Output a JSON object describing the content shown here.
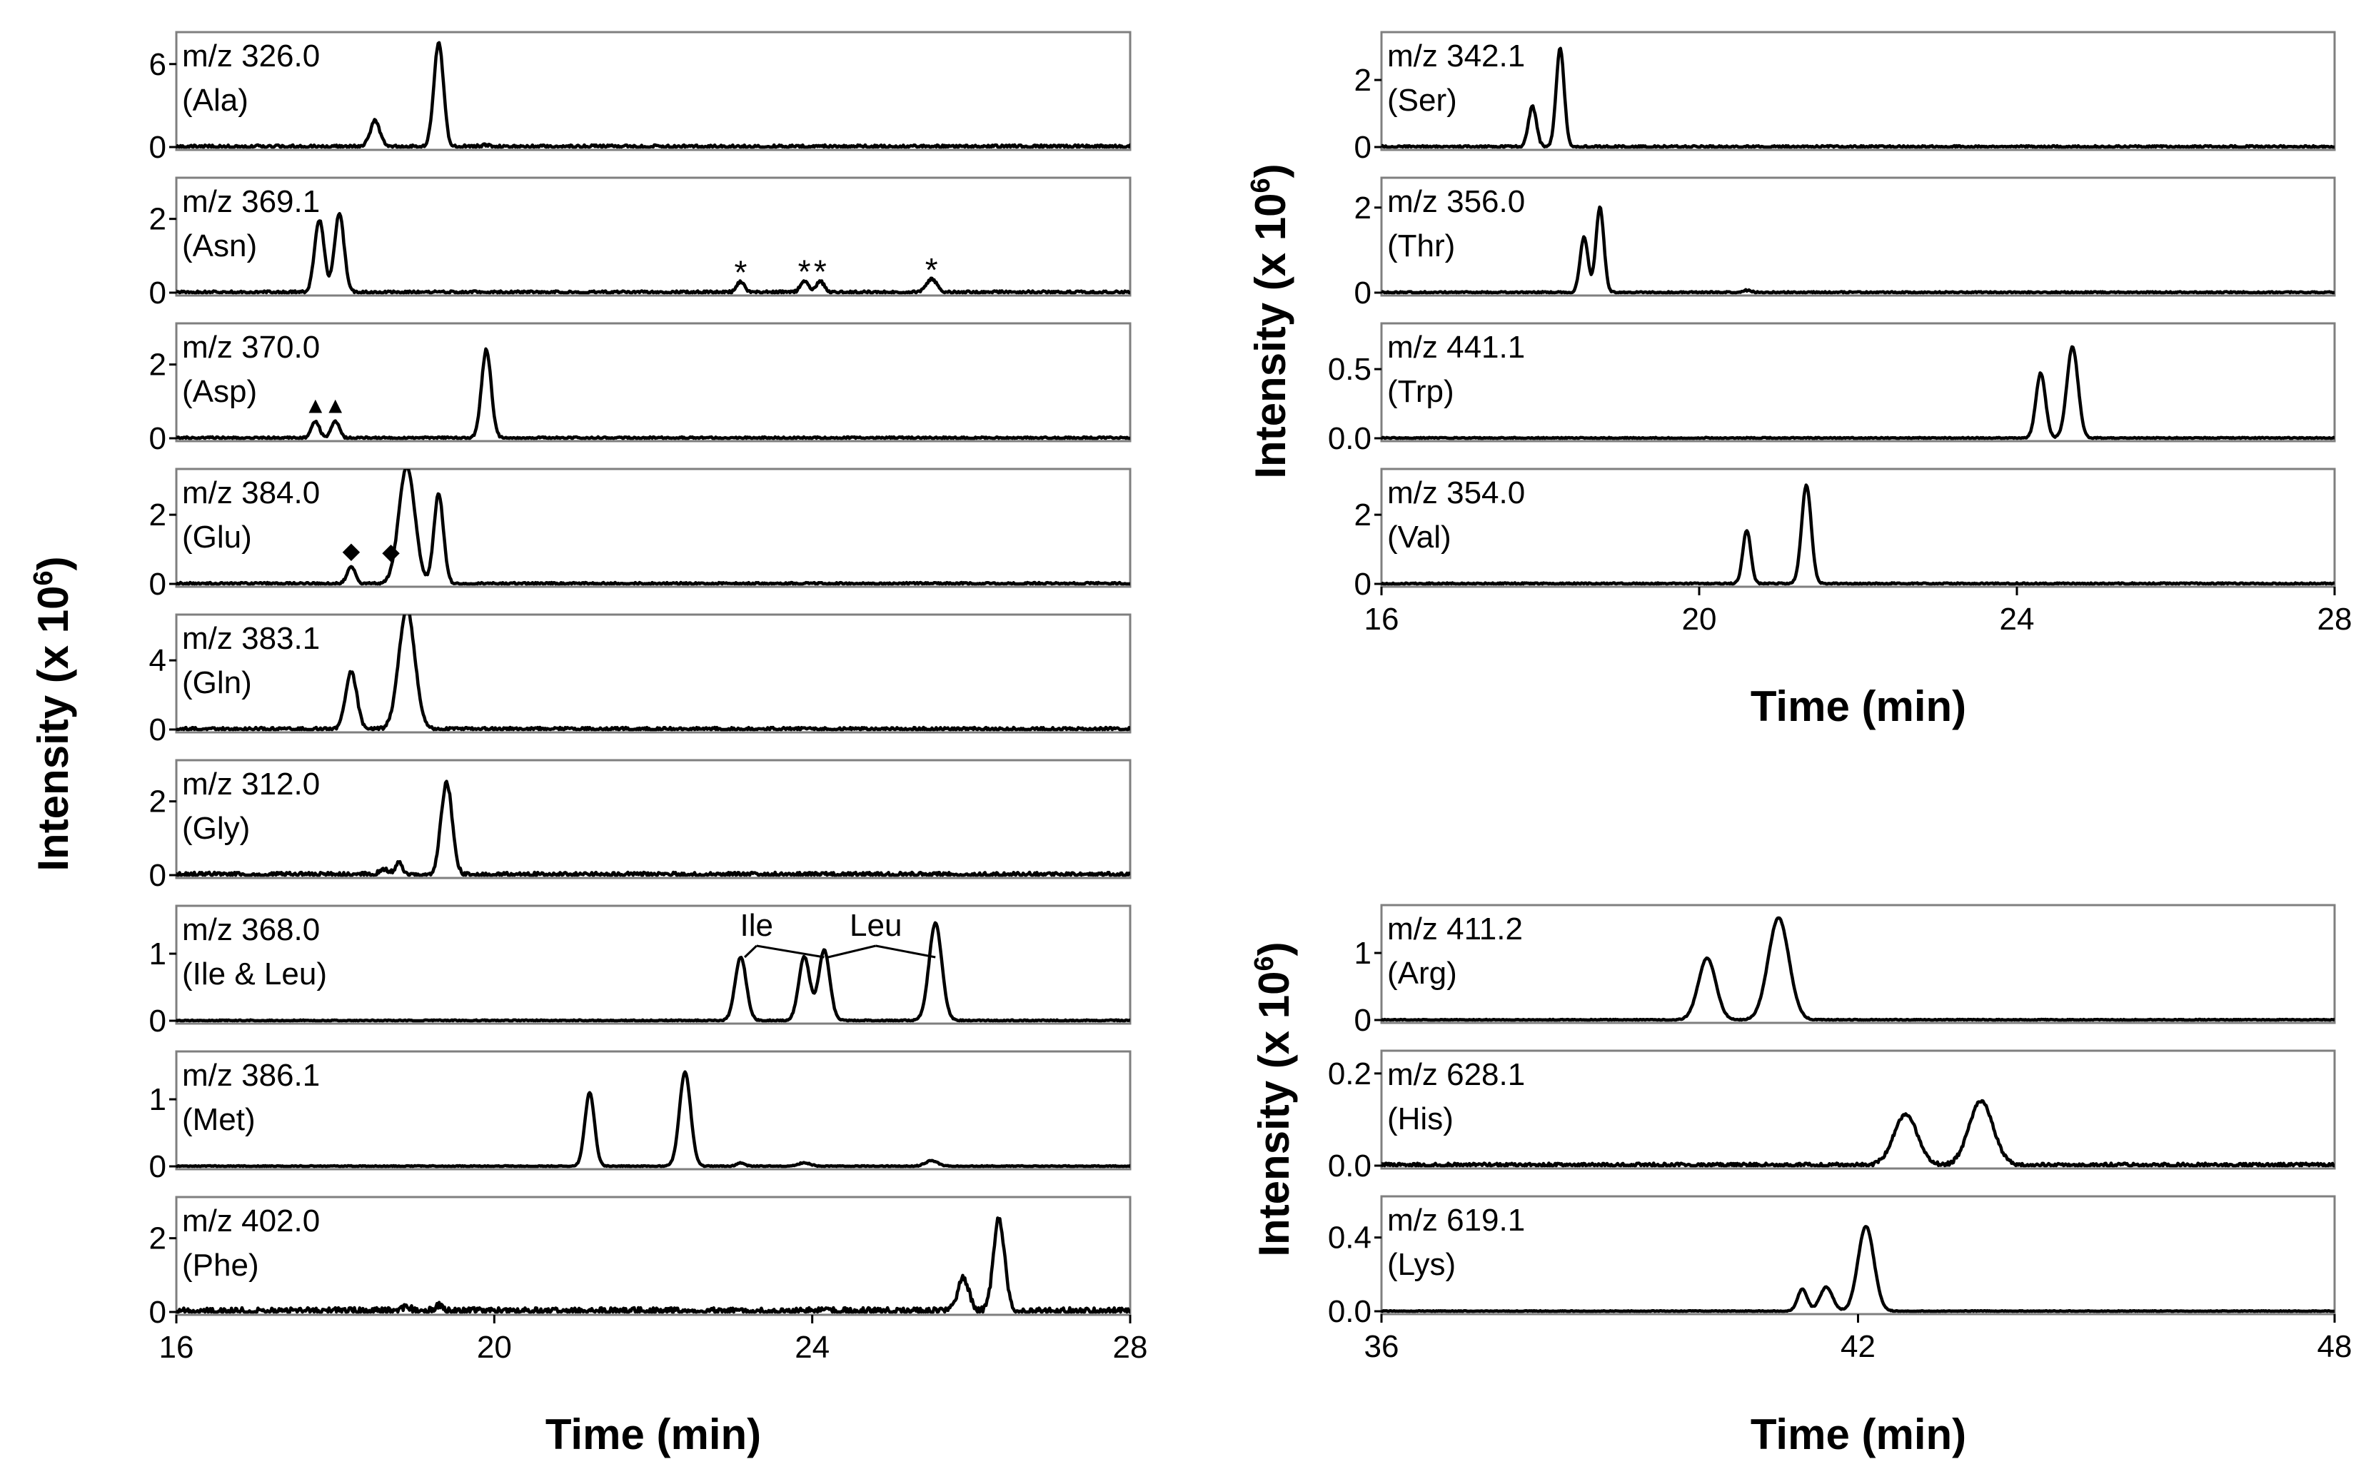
{
  "chart_data": [
    {
      "type": "line",
      "group": "left",
      "xlabel": "Time (min)",
      "ylabel": "Intensity (x 10",
      "ylabel_sup": "6",
      "ylabel_close": ")",
      "xlim": [
        16,
        28
      ],
      "xticks": [
        16,
        20,
        24,
        28
      ],
      "xtick_labels": [
        "16",
        "20",
        "24",
        "28"
      ],
      "panels": [
        {
          "mz": "m/z 326.0",
          "aa": "(Ala)",
          "yticks": [
            0,
            6
          ],
          "ytick_labels": [
            "0",
            "6"
          ],
          "ylim": [
            0,
            8
          ],
          "noise": 0.03,
          "noise_seed": 3,
          "peaks": [
            [
              18.5,
              1.9,
              0.06
            ],
            [
              19.3,
              7.5,
              0.06
            ],
            [
              19.9,
              0.15,
              0.05
            ]
          ]
        },
        {
          "mz": "m/z 369.1",
          "aa": "(Asn)",
          "yticks": [
            0,
            2
          ],
          "ytick_labels": [
            "0",
            "2"
          ],
          "ylim": [
            0,
            3
          ],
          "noise": 0.025,
          "noise_seed": 7,
          "peaks": [
            [
              17.8,
              1.95,
              0.06
            ],
            [
              18.05,
              2.15,
              0.06
            ],
            [
              23.1,
              0.28,
              0.05
            ],
            [
              23.9,
              0.3,
              0.05
            ],
            [
              24.1,
              0.3,
              0.05
            ],
            [
              25.5,
              0.35,
              0.07
            ]
          ],
          "annotations": [
            {
              "text": "*",
              "x": 23.1
            },
            {
              "text": "*",
              "x": 23.9
            },
            {
              "text": "*",
              "x": 24.1
            },
            {
              "text": "*",
              "x": 25.5
            }
          ]
        },
        {
          "mz": "m/z 370.0",
          "aa": "(Asp)",
          "yticks": [
            0,
            2
          ],
          "ytick_labels": [
            "0",
            "2"
          ],
          "ylim": [
            0,
            3
          ],
          "noise": 0.02,
          "noise_seed": 11,
          "peaks": [
            [
              17.75,
              0.45,
              0.05
            ],
            [
              18.0,
              0.45,
              0.05
            ],
            [
              19.9,
              2.4,
              0.06
            ]
          ],
          "annotations": [
            {
              "text": "▲",
              "x": 17.75
            },
            {
              "text": "▲",
              "x": 18.0
            }
          ]
        },
        {
          "mz": "m/z 384.0",
          "aa": "(Glu)",
          "yticks": [
            0,
            2
          ],
          "ytick_labels": [
            "0",
            "2"
          ],
          "ylim": [
            0,
            3.2
          ],
          "noise": 0.02,
          "noise_seed": 13,
          "peaks": [
            [
              18.2,
              0.5,
              0.05
            ],
            [
              18.9,
              3.4,
              0.1
            ],
            [
              19.3,
              2.6,
              0.06
            ]
          ],
          "annotations": [
            {
              "text": "◆",
              "x": 18.2
            },
            {
              "text": "◆",
              "x": 18.7
            }
          ]
        },
        {
          "mz": "m/z 383.1",
          "aa": "(Gln)",
          "yticks": [
            0,
            4
          ],
          "ytick_labels": [
            "0",
            "4"
          ],
          "ylim": [
            0,
            6.4
          ],
          "noise": 0.03,
          "noise_seed": 17,
          "peaks": [
            [
              18.2,
              3.3,
              0.07
            ],
            [
              18.9,
              7.0,
              0.1
            ]
          ]
        },
        {
          "mz": "m/z 312.0",
          "aa": "(Gly)",
          "yticks": [
            0,
            2
          ],
          "ytick_labels": [
            "0",
            "2"
          ],
          "ylim": [
            0,
            3
          ],
          "noise": 0.04,
          "noise_seed": 19,
          "peaks": [
            [
              18.6,
              0.15,
              0.05
            ],
            [
              18.8,
              0.3,
              0.05
            ],
            [
              19.4,
              2.5,
              0.07
            ]
          ]
        },
        {
          "mz": "m/z 368.0",
          "aa": "(Ile & Leu)",
          "yticks": [
            0,
            1
          ],
          "ytick_labels": [
            "0",
            "1"
          ],
          "ylim": [
            0,
            1.65
          ],
          "noise": 0.012,
          "noise_seed": 23,
          "peaks": [
            [
              23.1,
              0.95,
              0.07
            ],
            [
              23.9,
              0.95,
              0.07
            ],
            [
              24.15,
              1.05,
              0.07
            ],
            [
              25.55,
              1.45,
              0.08
            ]
          ],
          "annotations": [
            {
              "text": "Ile",
              "x": 23.3,
              "lines_to": [
                23.15,
                24.15
              ]
            },
            {
              "text": "Leu",
              "x": 24.8,
              "lines_to": [
                24.2,
                25.55
              ]
            }
          ]
        },
        {
          "mz": "m/z 386.1",
          "aa": "(Met)",
          "yticks": [
            0,
            1
          ],
          "ytick_labels": [
            "0",
            "1"
          ],
          "ylim": [
            0,
            1.65
          ],
          "noise": 0.01,
          "noise_seed": 29,
          "peaks": [
            [
              21.2,
              1.1,
              0.06
            ],
            [
              22.4,
              1.4,
              0.07
            ],
            [
              23.1,
              0.05,
              0.05
            ],
            [
              23.9,
              0.05,
              0.08
            ],
            [
              25.5,
              0.08,
              0.08
            ]
          ]
        },
        {
          "mz": "m/z 402.0",
          "aa": "(Phe)",
          "yticks": [
            0,
            2
          ],
          "ytick_labels": [
            "0",
            "2"
          ],
          "ylim": [
            0,
            3
          ],
          "noise": 0.06,
          "noise_seed": 31,
          "peaks": [
            [
              18.9,
              0.12,
              0.05
            ],
            [
              19.3,
              0.15,
              0.05
            ],
            [
              25.9,
              0.9,
              0.07
            ],
            [
              26.35,
              2.5,
              0.07
            ]
          ]
        }
      ]
    },
    {
      "type": "line",
      "group": "top-right",
      "xlabel": "Time (min)",
      "ylabel": "Intensity (x 10",
      "ylabel_sup": "6",
      "ylabel_close": ")",
      "xlim": [
        16,
        28
      ],
      "xticks": [
        16,
        20,
        24,
        28
      ],
      "xtick_labels": [
        "16",
        "20",
        "24",
        "28"
      ],
      "panels": [
        {
          "mz": "m/z 342.1",
          "aa": "(Ser)",
          "yticks": [
            0,
            2
          ],
          "ytick_labels": [
            "0",
            "2"
          ],
          "ylim": [
            0,
            3.3
          ],
          "noise": 0.02,
          "noise_seed": 37,
          "peaks": [
            [
              17.9,
              1.2,
              0.05
            ],
            [
              18.25,
              2.95,
              0.05
            ]
          ]
        },
        {
          "mz": "m/z 356.0",
          "aa": "(Thr)",
          "yticks": [
            0,
            2
          ],
          "ytick_labels": [
            "0",
            "2"
          ],
          "ylim": [
            0,
            2.6
          ],
          "noise": 0.015,
          "noise_seed": 41,
          "peaks": [
            [
              18.55,
              1.3,
              0.05
            ],
            [
              18.75,
              2.0,
              0.05
            ],
            [
              20.6,
              0.05,
              0.05
            ]
          ]
        },
        {
          "mz": "m/z 441.1",
          "aa": "(Trp)",
          "yticks": [
            0.0,
            0.5
          ],
          "ytick_labels": [
            "0.0",
            "0.5"
          ],
          "ylim": [
            0,
            0.8
          ],
          "noise": 0.012,
          "noise_seed": 43,
          "peaks": [
            [
              24.3,
              0.47,
              0.06
            ],
            [
              24.7,
              0.66,
              0.07
            ]
          ]
        },
        {
          "mz": "m/z 354.0",
          "aa": "(Val)",
          "yticks": [
            0,
            2
          ],
          "ytick_labels": [
            "0",
            "2"
          ],
          "ylim": [
            0,
            3.2
          ],
          "noise": 0.015,
          "noise_seed": 47,
          "peaks": [
            [
              20.6,
              1.55,
              0.05
            ],
            [
              21.35,
              2.85,
              0.06
            ]
          ]
        }
      ]
    },
    {
      "type": "line",
      "group": "bottom-right",
      "xlabel": "Time (min)",
      "ylabel": "Intensity (x 10",
      "ylabel_sup": "6",
      "ylabel_close": ")",
      "xlim": [
        36,
        48
      ],
      "xticks": [
        36,
        42,
        48
      ],
      "xtick_labels": [
        "36",
        "42",
        "48"
      ],
      "panels": [
        {
          "mz": "m/z 411.2",
          "aa": "(Arg)",
          "yticks": [
            0,
            1
          ],
          "ytick_labels": [
            "0",
            "1"
          ],
          "ylim": [
            0,
            1.65
          ],
          "noise": 0.01,
          "noise_seed": 53,
          "peaks": [
            [
              40.1,
              0.92,
              0.11
            ],
            [
              41.0,
              1.52,
              0.13
            ]
          ]
        },
        {
          "mz": "m/z 628.1",
          "aa": "(His)",
          "yticks": [
            0.0,
            0.2
          ],
          "ytick_labels": [
            "0.0",
            "0.2"
          ],
          "ylim": [
            0,
            0.24
          ],
          "noise": 0.035,
          "noise_seed": 59,
          "peaks": [
            [
              42.6,
              0.11,
              0.15
            ],
            [
              43.55,
              0.14,
              0.15
            ]
          ]
        },
        {
          "mz": "m/z 619.1",
          "aa": "(Lys)",
          "yticks": [
            0.0,
            0.4
          ],
          "ytick_labels": [
            "0.0",
            "0.4"
          ],
          "ylim": [
            0,
            0.6
          ],
          "noise": 0.008,
          "noise_seed": 61,
          "peaks": [
            [
              41.3,
              0.12,
              0.06
            ],
            [
              41.6,
              0.13,
              0.08
            ],
            [
              42.1,
              0.46,
              0.1
            ]
          ]
        }
      ]
    }
  ]
}
